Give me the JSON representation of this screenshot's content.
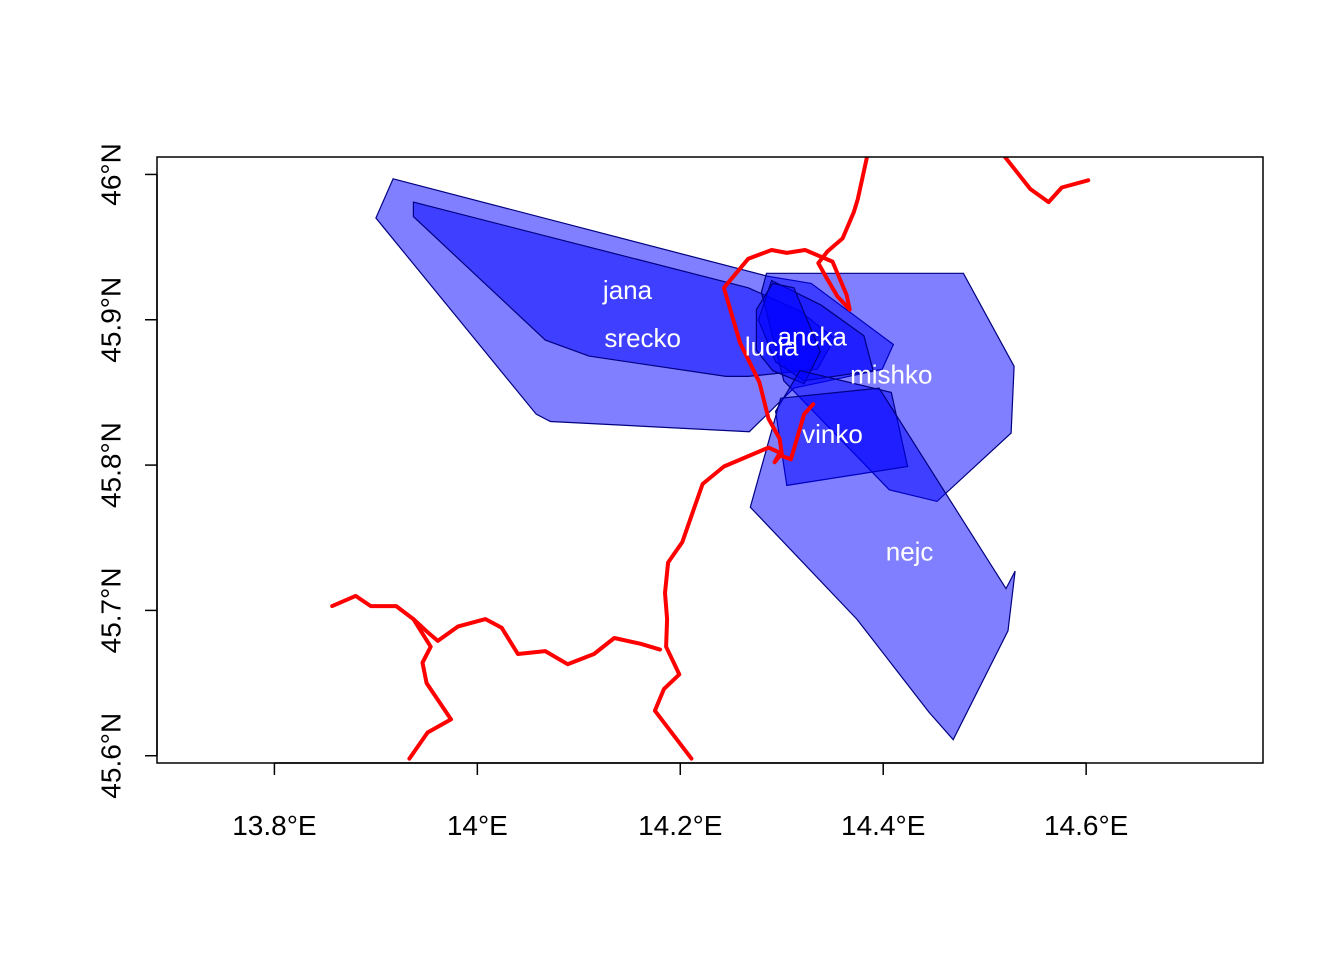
{
  "map": {
    "x_axis": {
      "range": [
        13.6843,
        14.7743
      ],
      "ticks": [
        {
          "value": 13.8,
          "label": "13.8°E"
        },
        {
          "value": 14.0,
          "label": "14°E"
        },
        {
          "value": 14.2,
          "label": "14.2°E"
        },
        {
          "value": 14.4,
          "label": "14.4°E"
        },
        {
          "value": 14.6,
          "label": "14.6°E"
        }
      ]
    },
    "y_axis": {
      "range": [
        45.595,
        46.012
      ],
      "ticks": [
        {
          "value": 45.6,
          "label": "45.6°N"
        },
        {
          "value": 45.7,
          "label": "45.7°N"
        },
        {
          "value": 45.8,
          "label": "45.8°N"
        },
        {
          "value": 45.9,
          "label": "45.9°N"
        },
        {
          "value": 46.0,
          "label": "46°N"
        }
      ]
    },
    "colors": {
      "polygon_fill": "#0000ff",
      "polygon_stroke": "#000080",
      "line": "#ff0000",
      "frame": "#000000"
    },
    "polygons": [
      {
        "name": "jana",
        "label_pos": [
          14.148,
          45.919
        ],
        "coords": [
          [
            13.917,
            45.997
          ],
          [
            14.286,
            45.93
          ],
          [
            14.329,
            45.925
          ],
          [
            14.41,
            45.883
          ],
          [
            14.399,
            45.866
          ],
          [
            14.312,
            45.853
          ],
          [
            14.268,
            45.823
          ],
          [
            14.072,
            45.83
          ],
          [
            14.058,
            45.835
          ],
          [
            13.9,
            45.97
          ]
        ]
      },
      {
        "name": "srecko",
        "label_pos": [
          14.163,
          45.886
        ],
        "coords": [
          [
            13.937,
            45.981
          ],
          [
            14.267,
            45.922
          ],
          [
            14.318,
            45.906
          ],
          [
            14.352,
            45.887
          ],
          [
            14.335,
            45.866
          ],
          [
            14.267,
            45.861
          ],
          [
            14.245,
            45.861
          ],
          [
            14.11,
            45.875
          ],
          [
            14.067,
            45.886
          ],
          [
            13.937,
            45.971
          ]
        ]
      },
      {
        "name": "mishko",
        "label_pos": [
          14.408,
          45.861
        ],
        "coords": [
          [
            14.285,
            45.932
          ],
          [
            14.479,
            45.932
          ],
          [
            14.529,
            45.868
          ],
          [
            14.526,
            45.822
          ],
          [
            14.453,
            45.775
          ],
          [
            14.406,
            45.783
          ],
          [
            14.302,
            45.858
          ],
          [
            14.28,
            45.919
          ]
        ]
      },
      {
        "name": "ancka",
        "label_pos": [
          14.33,
          45.887
        ],
        "coords": [
          [
            14.29,
            45.927
          ],
          [
            14.339,
            45.91
          ],
          [
            14.381,
            45.889
          ],
          [
            14.39,
            45.865
          ],
          [
            14.322,
            45.858
          ],
          [
            14.294,
            45.871
          ],
          [
            14.277,
            45.9
          ]
        ]
      },
      {
        "name": "lucia",
        "label_pos": [
          14.29,
          45.88
        ],
        "coords": [
          [
            14.291,
            45.925
          ],
          [
            14.312,
            45.922
          ],
          [
            14.338,
            45.878
          ],
          [
            14.322,
            45.856
          ],
          [
            14.291,
            45.865
          ],
          [
            14.275,
            45.879
          ],
          [
            14.275,
            45.907
          ]
        ]
      },
      {
        "name": "vinko",
        "label_pos": [
          14.35,
          45.82
        ],
        "coords": [
          [
            14.318,
            45.865
          ],
          [
            14.408,
            45.85
          ],
          [
            14.424,
            45.799
          ],
          [
            14.305,
            45.786
          ],
          [
            14.294,
            45.837
          ]
        ]
      },
      {
        "name": "nejc",
        "label_pos": [
          14.426,
          45.739
        ],
        "coords": [
          [
            14.299,
            45.846
          ],
          [
            14.396,
            45.853
          ],
          [
            14.521,
            45.715
          ],
          [
            14.53,
            45.727
          ],
          [
            14.523,
            45.686
          ],
          [
            14.469,
            45.611
          ],
          [
            14.445,
            45.63
          ],
          [
            14.374,
            45.694
          ],
          [
            14.269,
            45.771
          ]
        ]
      }
    ],
    "label_order": [
      "jana",
      "srecko",
      "ancka",
      "lucia",
      "mishko",
      "vinko",
      "nejc"
    ],
    "lines": [
      {
        "name": "river-north",
        "coords": [
          [
            14.384,
            46.012
          ],
          [
            14.375,
            45.983
          ],
          [
            14.371,
            45.974
          ],
          [
            14.36,
            45.956
          ],
          [
            14.345,
            45.947
          ],
          [
            14.336,
            45.939
          ],
          [
            14.344,
            45.929
          ],
          [
            14.355,
            45.916
          ],
          [
            14.367,
            45.907
          ],
          [
            14.364,
            45.917
          ],
          [
            14.35,
            45.94
          ],
          [
            14.323,
            45.948
          ],
          [
            14.305,
            45.946
          ],
          [
            14.29,
            45.948
          ],
          [
            14.267,
            45.942
          ],
          [
            14.243,
            45.922
          ],
          [
            14.259,
            45.884
          ],
          [
            14.278,
            45.857
          ],
          [
            14.287,
            45.832
          ],
          [
            14.298,
            45.818
          ],
          [
            14.3,
            45.808
          ],
          [
            14.293,
            45.802
          ],
          [
            14.297,
            45.807
          ],
          [
            14.309,
            45.804
          ],
          [
            14.322,
            45.835
          ],
          [
            14.331,
            45.842
          ]
        ]
      },
      {
        "name": "river-south",
        "coords": [
          [
            14.3,
            45.808
          ],
          [
            14.287,
            45.812
          ],
          [
            14.243,
            45.799
          ],
          [
            14.222,
            45.787
          ],
          [
            14.211,
            45.765
          ],
          [
            14.202,
            45.747
          ],
          [
            14.188,
            45.733
          ],
          [
            14.185,
            45.712
          ],
          [
            14.187,
            45.694
          ],
          [
            14.186,
            45.675
          ],
          [
            14.199,
            45.656
          ],
          [
            14.184,
            45.646
          ],
          [
            14.175,
            45.631
          ],
          [
            14.211,
            45.598
          ]
        ]
      },
      {
        "name": "river-west",
        "coords": [
          [
            13.857,
            45.703
          ],
          [
            13.88,
            45.71
          ],
          [
            13.895,
            45.703
          ],
          [
            13.92,
            45.703
          ],
          [
            13.937,
            45.694
          ],
          [
            13.951,
            45.685
          ],
          [
            13.961,
            45.679
          ],
          [
            13.981,
            45.689
          ],
          [
            14.008,
            45.694
          ],
          [
            14.024,
            45.688
          ],
          [
            14.04,
            45.67
          ],
          [
            14.067,
            45.672
          ],
          [
            14.089,
            45.663
          ],
          [
            14.115,
            45.67
          ],
          [
            14.135,
            45.681
          ],
          [
            14.161,
            45.677
          ],
          [
            14.18,
            45.673
          ]
        ]
      },
      {
        "name": "river-west-south",
        "coords": [
          [
            13.937,
            45.694
          ],
          [
            13.954,
            45.675
          ],
          [
            13.946,
            45.664
          ],
          [
            13.95,
            45.65
          ],
          [
            13.974,
            45.625
          ],
          [
            13.951,
            45.616
          ],
          [
            13.933,
            45.598
          ]
        ]
      },
      {
        "name": "river-northeast",
        "coords": [
          [
            14.52,
            46.012
          ],
          [
            14.545,
            45.99
          ],
          [
            14.563,
            45.981
          ],
          [
            14.576,
            45.991
          ],
          [
            14.602,
            45.996
          ]
        ]
      }
    ]
  }
}
